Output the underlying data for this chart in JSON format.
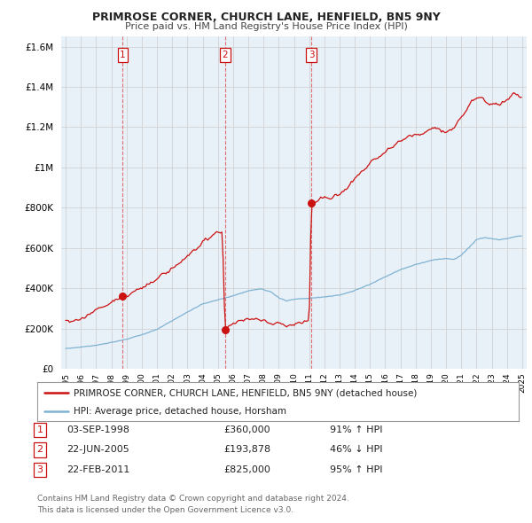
{
  "title": "PRIMROSE CORNER, CHURCH LANE, HENFIELD, BN5 9NY",
  "subtitle": "Price paid vs. HM Land Registry's House Price Index (HPI)",
  "legend_line1": "PRIMROSE CORNER, CHURCH LANE, HENFIELD, BN5 9NY (detached house)",
  "legend_line2": "HPI: Average price, detached house, Horsham",
  "footer1": "Contains HM Land Registry data © Crown copyright and database right 2024.",
  "footer2": "This data is licensed under the Open Government Licence v3.0.",
  "transactions": [
    {
      "num": 1,
      "date": "03-SEP-1998",
      "price": 360000,
      "pct": "91%",
      "dir": "↑",
      "x": 1998.75
    },
    {
      "num": 2,
      "date": "22-JUN-2005",
      "price": 193878,
      "pct": "46%",
      "dir": "↓",
      "x": 2005.47
    },
    {
      "num": 3,
      "date": "22-FEB-2011",
      "price": 825000,
      "pct": "95%",
      "dir": "↑",
      "x": 2011.14
    }
  ],
  "ylim": [
    0,
    1650000
  ],
  "xlim": [
    1994.7,
    2025.3
  ],
  "hpi_color": "#7fb3d3",
  "price_color": "#cc1111",
  "vline_color": "#e06060",
  "grid_color": "#cccccc",
  "chart_bg": "#e8f0f8",
  "bg_color": "#ffffff",
  "trans_box_color": "#cc1111"
}
